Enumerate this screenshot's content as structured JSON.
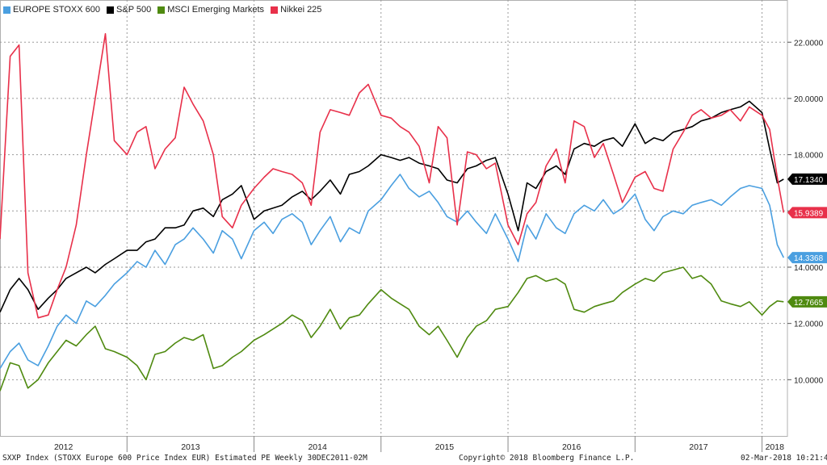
{
  "legend": [
    {
      "label": "EUROPE STOXX 600",
      "color": "#4a9fe0"
    },
    {
      "label": "S&P 500",
      "color": "#000000"
    },
    {
      "label": "MSCI Emerging Markets",
      "color": "#4f8a10"
    },
    {
      "label": "Nikkei 225",
      "color": "#e8304a"
    }
  ],
  "footer": {
    "left": "SXXP Index (STOXX Europe 600 Price Index EUR) Estimated PE  Weekly 30DEC2011-02M",
    "center": "Copyright© 2018 Bloomberg Finance L.P.",
    "right": "02-Mar-2018 10:21:42"
  },
  "chart_data": {
    "type": "line",
    "ylim": [
      8.0,
      23.5
    ],
    "xlim": [
      2012.0,
      2018.2
    ],
    "y_ticks": [
      "10.0000",
      "12.0000",
      "14.0000",
      "16.0000",
      "18.0000",
      "20.0000",
      "22.0000"
    ],
    "x_ticks": [
      "2012",
      "2013",
      "2014",
      "2015",
      "2016",
      "2017",
      "2018"
    ],
    "grid": true,
    "legend_position": "top-left",
    "series": [
      {
        "name": "EUROPE STOXX 600",
        "color": "#4a9fe0",
        "last_label": "14.3368",
        "x": [
          2012.0,
          2012.08,
          2012.15,
          2012.22,
          2012.3,
          2012.38,
          2012.45,
          2012.52,
          2012.6,
          2012.68,
          2012.75,
          2012.83,
          2012.9,
          2013.0,
          2013.08,
          2013.15,
          2013.22,
          2013.3,
          2013.38,
          2013.45,
          2013.52,
          2013.6,
          2013.68,
          2013.75,
          2013.83,
          2013.9,
          2014.0,
          2014.08,
          2014.15,
          2014.22,
          2014.3,
          2014.38,
          2014.45,
          2014.52,
          2014.6,
          2014.68,
          2014.75,
          2014.83,
          2014.9,
          2015.0,
          2015.08,
          2015.15,
          2015.22,
          2015.3,
          2015.38,
          2015.45,
          2015.52,
          2015.6,
          2015.68,
          2015.75,
          2015.83,
          2015.9,
          2016.0,
          2016.08,
          2016.15,
          2016.22,
          2016.3,
          2016.38,
          2016.45,
          2016.52,
          2016.6,
          2016.68,
          2016.75,
          2016.83,
          2016.9,
          2017.0,
          2017.08,
          2017.15,
          2017.22,
          2017.3,
          2017.38,
          2017.45,
          2017.52,
          2017.6,
          2017.68,
          2017.75,
          2017.83,
          2017.9,
          2018.0,
          2018.06,
          2018.12,
          2018.17
        ],
        "values": [
          10.4,
          11.0,
          11.3,
          10.7,
          10.5,
          11.2,
          11.9,
          12.3,
          12.0,
          12.8,
          12.6,
          13.0,
          13.4,
          13.8,
          14.2,
          14.0,
          14.6,
          14.1,
          14.8,
          15.0,
          15.4,
          15.0,
          14.5,
          15.3,
          15.0,
          14.3,
          15.3,
          15.6,
          15.2,
          15.7,
          15.9,
          15.6,
          14.8,
          15.3,
          15.8,
          14.9,
          15.4,
          15.2,
          16.0,
          16.4,
          16.9,
          17.3,
          16.8,
          16.5,
          16.7,
          16.3,
          15.8,
          15.6,
          16.0,
          15.6,
          15.2,
          15.9,
          15.0,
          14.2,
          15.5,
          15.0,
          15.9,
          15.4,
          15.2,
          15.9,
          16.2,
          16.0,
          16.4,
          15.9,
          16.1,
          16.6,
          15.7,
          15.3,
          15.8,
          16.0,
          15.9,
          16.2,
          16.3,
          16.4,
          16.2,
          16.5,
          16.8,
          16.9,
          16.8,
          16.2,
          14.8,
          14.34
        ]
      },
      {
        "name": "S&P 500",
        "color": "#000000",
        "last_label": "17.1340",
        "x": [
          2012.0,
          2012.08,
          2012.15,
          2012.22,
          2012.3,
          2012.38,
          2012.45,
          2012.52,
          2012.6,
          2012.68,
          2012.75,
          2012.83,
          2012.9,
          2013.0,
          2013.08,
          2013.15,
          2013.22,
          2013.3,
          2013.38,
          2013.45,
          2013.52,
          2013.6,
          2013.68,
          2013.75,
          2013.83,
          2013.9,
          2014.0,
          2014.08,
          2014.15,
          2014.22,
          2014.3,
          2014.38,
          2014.45,
          2014.52,
          2014.6,
          2014.68,
          2014.75,
          2014.83,
          2014.9,
          2015.0,
          2015.08,
          2015.15,
          2015.22,
          2015.3,
          2015.38,
          2015.45,
          2015.52,
          2015.6,
          2015.68,
          2015.75,
          2015.83,
          2015.9,
          2016.0,
          2016.08,
          2016.15,
          2016.22,
          2016.3,
          2016.38,
          2016.45,
          2016.52,
          2016.6,
          2016.68,
          2016.75,
          2016.83,
          2016.9,
          2017.0,
          2017.08,
          2017.15,
          2017.22,
          2017.3,
          2017.38,
          2017.45,
          2017.52,
          2017.6,
          2017.68,
          2017.75,
          2017.83,
          2017.9,
          2018.0,
          2018.06,
          2018.12,
          2018.17
        ],
        "values": [
          12.4,
          13.2,
          13.6,
          13.2,
          12.5,
          12.9,
          13.2,
          13.6,
          13.8,
          14.0,
          13.8,
          14.1,
          14.3,
          14.6,
          14.6,
          14.9,
          15.0,
          15.4,
          15.4,
          15.5,
          16.0,
          16.1,
          15.8,
          16.4,
          16.6,
          16.9,
          15.7,
          16.0,
          16.1,
          16.2,
          16.5,
          16.7,
          16.4,
          16.7,
          17.1,
          16.6,
          17.3,
          17.4,
          17.6,
          18.0,
          17.9,
          17.8,
          17.9,
          17.7,
          17.6,
          17.5,
          17.1,
          17.0,
          17.5,
          17.6,
          17.8,
          17.9,
          16.6,
          15.3,
          17.0,
          16.8,
          17.4,
          17.6,
          17.3,
          18.2,
          18.4,
          18.3,
          18.5,
          18.6,
          18.3,
          19.1,
          18.4,
          18.6,
          18.5,
          18.8,
          18.9,
          19.0,
          19.2,
          19.3,
          19.5,
          19.6,
          19.7,
          19.9,
          19.5,
          18.2,
          17.0,
          17.13
        ]
      },
      {
        "name": "MSCI Emerging Markets",
        "color": "#4f8a10",
        "last_label": "12.7665",
        "x": [
          2012.0,
          2012.08,
          2012.15,
          2012.22,
          2012.3,
          2012.38,
          2012.45,
          2012.52,
          2012.6,
          2012.68,
          2012.75,
          2012.83,
          2012.9,
          2013.0,
          2013.08,
          2013.15,
          2013.22,
          2013.3,
          2013.38,
          2013.45,
          2013.52,
          2013.6,
          2013.68,
          2013.75,
          2013.83,
          2013.9,
          2014.0,
          2014.08,
          2014.15,
          2014.22,
          2014.3,
          2014.38,
          2014.45,
          2014.52,
          2014.6,
          2014.68,
          2014.75,
          2014.83,
          2014.9,
          2015.0,
          2015.08,
          2015.15,
          2015.22,
          2015.3,
          2015.38,
          2015.45,
          2015.52,
          2015.6,
          2015.68,
          2015.75,
          2015.83,
          2015.9,
          2016.0,
          2016.08,
          2016.15,
          2016.22,
          2016.3,
          2016.38,
          2016.45,
          2016.52,
          2016.6,
          2016.68,
          2016.75,
          2016.83,
          2016.9,
          2017.0,
          2017.08,
          2017.15,
          2017.22,
          2017.3,
          2017.38,
          2017.45,
          2017.52,
          2017.6,
          2017.68,
          2017.75,
          2017.83,
          2017.9,
          2018.0,
          2018.06,
          2018.12,
          2018.17
        ],
        "values": [
          9.6,
          10.6,
          10.5,
          9.7,
          10.0,
          10.6,
          11.0,
          11.4,
          11.2,
          11.6,
          11.9,
          11.1,
          11.0,
          10.8,
          10.5,
          10.0,
          10.9,
          11.0,
          11.3,
          11.5,
          11.4,
          11.6,
          10.4,
          10.5,
          10.8,
          11.0,
          11.4,
          11.6,
          11.8,
          12.0,
          12.3,
          12.1,
          11.5,
          11.9,
          12.5,
          11.8,
          12.2,
          12.3,
          12.7,
          13.2,
          12.9,
          12.7,
          12.5,
          11.9,
          11.6,
          11.9,
          11.4,
          10.8,
          11.5,
          11.9,
          12.1,
          12.5,
          12.6,
          13.1,
          13.6,
          13.7,
          13.5,
          13.6,
          13.4,
          12.5,
          12.4,
          12.6,
          12.7,
          12.8,
          13.1,
          13.4,
          13.6,
          13.5,
          13.8,
          13.9,
          14.0,
          13.6,
          13.7,
          13.4,
          12.8,
          12.7,
          12.6,
          12.77,
          12.3,
          12.6,
          12.8,
          12.77
        ]
      },
      {
        "name": "Nikkei 225",
        "color": "#e8304a",
        "last_label": "15.9389",
        "x": [
          2012.0,
          2012.08,
          2012.15,
          2012.22,
          2012.3,
          2012.38,
          2012.45,
          2012.52,
          2012.6,
          2012.68,
          2012.75,
          2012.83,
          2012.9,
          2013.0,
          2013.08,
          2013.15,
          2013.22,
          2013.3,
          2013.38,
          2013.45,
          2013.52,
          2013.6,
          2013.68,
          2013.75,
          2013.83,
          2013.9,
          2014.0,
          2014.08,
          2014.15,
          2014.22,
          2014.3,
          2014.38,
          2014.45,
          2014.52,
          2014.6,
          2014.68,
          2014.75,
          2014.83,
          2014.9,
          2015.0,
          2015.08,
          2015.15,
          2015.22,
          2015.3,
          2015.38,
          2015.45,
          2015.52,
          2015.6,
          2015.68,
          2015.75,
          2015.83,
          2015.9,
          2016.0,
          2016.08,
          2016.15,
          2016.22,
          2016.3,
          2016.38,
          2016.45,
          2016.52,
          2016.6,
          2016.68,
          2016.75,
          2016.83,
          2016.9,
          2017.0,
          2017.08,
          2017.15,
          2017.22,
          2017.3,
          2017.38,
          2017.45,
          2017.52,
          2017.6,
          2017.68,
          2017.75,
          2017.83,
          2017.9,
          2018.0,
          2018.06,
          2018.12,
          2018.17
        ],
        "values": [
          15.0,
          21.5,
          21.9,
          13.8,
          12.2,
          12.3,
          13.2,
          14.0,
          15.5,
          18.0,
          20.0,
          22.3,
          18.5,
          18.0,
          18.8,
          19.0,
          17.5,
          18.2,
          18.6,
          20.4,
          19.8,
          19.2,
          18.0,
          15.8,
          15.4,
          16.2,
          16.8,
          17.2,
          17.5,
          17.4,
          17.3,
          17.0,
          16.2,
          18.8,
          19.6,
          19.5,
          19.4,
          20.2,
          20.5,
          19.4,
          19.3,
          19.0,
          18.8,
          18.3,
          17.0,
          19.0,
          18.6,
          15.5,
          18.1,
          18.0,
          17.5,
          17.7,
          15.5,
          14.8,
          15.9,
          16.3,
          17.6,
          18.2,
          17.0,
          19.2,
          19.0,
          17.9,
          18.4,
          17.3,
          16.3,
          17.2,
          17.4,
          16.8,
          16.7,
          18.2,
          18.8,
          19.4,
          19.6,
          19.3,
          19.4,
          19.6,
          19.2,
          19.7,
          19.4,
          18.9,
          17.2,
          15.94
        ]
      }
    ]
  }
}
